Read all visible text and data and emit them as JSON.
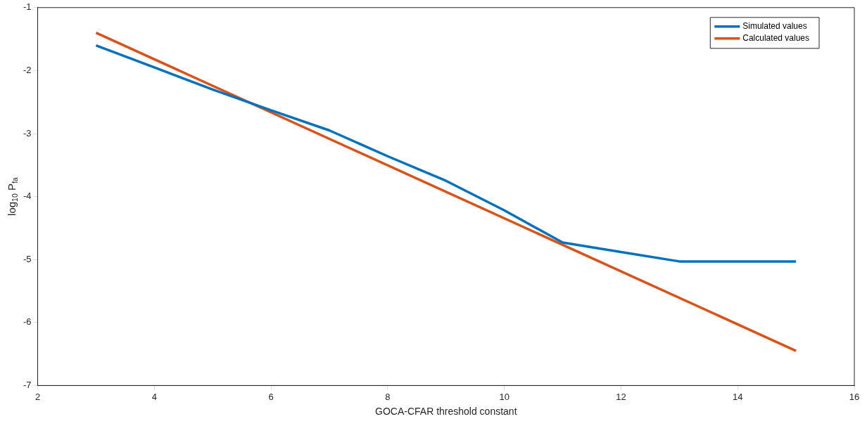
{
  "chart_data": {
    "type": "line",
    "xlabel": "GOCA-CFAR threshold constant",
    "ylabel": "log$_{10}$ P$_{fa}$",
    "xlim": [
      2,
      16
    ],
    "xticks": [
      2,
      4,
      6,
      8,
      10,
      12,
      14,
      16
    ],
    "ylim": [
      -7,
      -1
    ],
    "yticks": [
      -7,
      -6,
      -5,
      -4,
      -3,
      -2,
      -1
    ],
    "grid": false,
    "legend": "top right",
    "line_style": "solid",
    "marker": "none",
    "series": [
      {
        "name": "Simulated values",
        "color": "#0072bd",
        "x": [
          3,
          4,
          5,
          6,
          7,
          8,
          9,
          10,
          11,
          12,
          13,
          14,
          15
        ],
        "values": [
          -1.6,
          -1.95,
          -2.3,
          -2.63,
          -2.95,
          -3.36,
          -3.75,
          -4.22,
          -4.73,
          -4.88,
          -5.03,
          -5.03,
          -5.03
        ]
      },
      {
        "name": "Calculated values",
        "color": "#d95319",
        "x": [
          3,
          15
        ],
        "values": [
          -1.4,
          -6.45
        ]
      }
    ]
  }
}
